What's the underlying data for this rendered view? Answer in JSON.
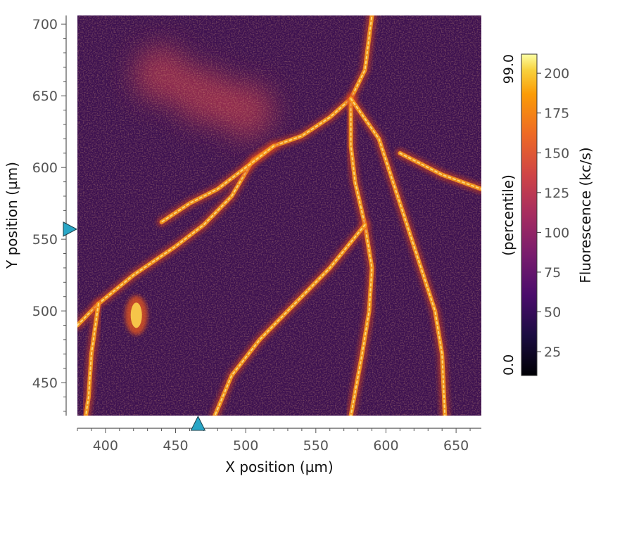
{
  "chart_data": {
    "type": "heatmap",
    "title": "",
    "xlabel": "X position (µm)",
    "ylabel": "Y position (µm)",
    "xlim": [
      380,
      668
    ],
    "ylim": [
      427,
      706
    ],
    "xticks": [
      400,
      450,
      500,
      550,
      600,
      650
    ],
    "yticks": [
      450,
      500,
      550,
      600,
      650,
      700
    ],
    "colormap": "inferno",
    "grid": false,
    "colorbar": {
      "label": "Fluorescence (kc/s)",
      "ticks": [
        25,
        50,
        75,
        100,
        125,
        150,
        175,
        200
      ],
      "range": [
        10,
        212
      ],
      "percentile_label": "(percentile)",
      "percentile_min": "0.0",
      "percentile_max": "99.0"
    },
    "markers": [
      {
        "axis": "x",
        "value": 466,
        "color": "#29a6c6"
      },
      {
        "axis": "y",
        "value": 557,
        "color": "#29a6c6"
      }
    ],
    "bright_structures": [
      {
        "kind": "vessel",
        "points": [
          [
            380,
            490
          ],
          [
            395,
            505
          ],
          [
            420,
            525
          ],
          [
            450,
            545
          ],
          [
            470,
            560
          ],
          [
            490,
            580
          ],
          [
            505,
            605
          ],
          [
            520,
            615
          ],
          [
            540,
            622
          ],
          [
            560,
            635
          ],
          [
            575,
            648
          ],
          [
            585,
            668
          ],
          [
            590,
            706
          ]
        ]
      },
      {
        "kind": "vessel",
        "points": [
          [
            575,
            648
          ],
          [
            575,
            615
          ],
          [
            578,
            590
          ],
          [
            585,
            560
          ],
          [
            590,
            530
          ],
          [
            588,
            500
          ],
          [
            583,
            470
          ],
          [
            575,
            427
          ]
        ]
      },
      {
        "kind": "vessel",
        "points": [
          [
            575,
            648
          ],
          [
            595,
            620
          ],
          [
            605,
            590
          ],
          [
            615,
            560
          ],
          [
            625,
            530
          ],
          [
            635,
            500
          ],
          [
            640,
            470
          ],
          [
            642,
            427
          ]
        ]
      },
      {
        "kind": "vessel",
        "points": [
          [
            610,
            610
          ],
          [
            640,
            595
          ],
          [
            668,
            585
          ]
        ]
      },
      {
        "kind": "vessel",
        "points": [
          [
            585,
            560
          ],
          [
            560,
            530
          ],
          [
            535,
            505
          ],
          [
            510,
            480
          ],
          [
            490,
            455
          ],
          [
            478,
            427
          ]
        ]
      },
      {
        "kind": "vessel",
        "points": [
          [
            520,
            615
          ],
          [
            500,
            600
          ],
          [
            480,
            585
          ],
          [
            460,
            575
          ],
          [
            440,
            562
          ]
        ]
      },
      {
        "kind": "vessel",
        "points": [
          [
            395,
            505
          ],
          [
            390,
            470
          ],
          [
            388,
            440
          ],
          [
            386,
            427
          ]
        ]
      },
      {
        "kind": "blob",
        "points": [
          [
            422,
            497
          ]
        ]
      },
      {
        "kind": "diffuse",
        "points": [
          [
            440,
            665
          ],
          [
            470,
            650
          ],
          [
            500,
            640
          ]
        ]
      }
    ]
  }
}
